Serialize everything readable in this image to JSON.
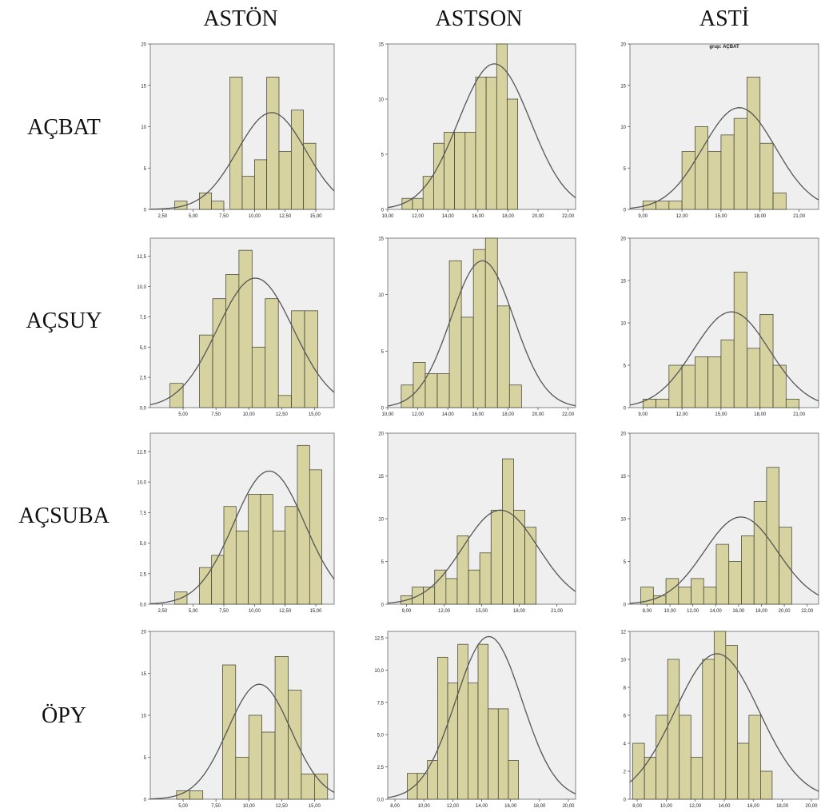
{
  "column_headers": [
    "ASTÖN",
    "ASTSON",
    "ASTİ"
  ],
  "row_headers": [
    "AÇBAT",
    "AÇSUY",
    "AÇSUBA",
    "ÖPY"
  ],
  "colors": {
    "bar_fill": "#d6d3a0",
    "bar_stroke": "#3a3a2a",
    "plot_bg": "#efefef",
    "curve": "#555555"
  },
  "chart_data": [
    {
      "type": "bar",
      "row": "AÇBAT",
      "column": "ASTÖN",
      "x": [
        4,
        6,
        7,
        8.5,
        9.5,
        10.5,
        11.5,
        12.5,
        13.5,
        14.5
      ],
      "values": [
        1,
        2,
        1,
        16,
        4,
        6,
        16,
        7,
        12,
        8
      ],
      "bin_width": 1,
      "xlim": [
        1.5,
        16.5
      ],
      "ylim": [
        0,
        20
      ],
      "xticks": [
        2.5,
        5,
        7.5,
        10,
        12.5,
        15
      ],
      "xtick_labels": [
        "2,50",
        "5,00",
        "7,50",
        "10,00",
        "12,50",
        "15,00"
      ],
      "yticks": [
        0,
        5,
        10,
        15,
        20
      ],
      "ytick_labels": [
        "0",
        "5",
        "10",
        "15",
        "20"
      ],
      "curve": {
        "mean": 11.4,
        "sd": 2.8,
        "peak": 11.7
      }
    },
    {
      "type": "bar",
      "row": "AÇBAT",
      "column": "ASTSON",
      "x": [
        11.3,
        12,
        12.7,
        13.4,
        14.1,
        14.8,
        15.5,
        16.2,
        16.9,
        17.6,
        18.3,
        19
      ],
      "values": [
        1,
        1,
        3,
        6,
        7,
        7,
        7,
        12,
        12,
        15,
        10,
        0
      ],
      "bin_width": 0.7,
      "xlim": [
        10,
        22.5
      ],
      "ylim": [
        0,
        15
      ],
      "xticks": [
        10,
        12,
        14,
        16,
        18,
        20,
        22
      ],
      "xtick_labels": [
        "10,00",
        "12,00",
        "14,00",
        "16,00",
        "18,00",
        "20,00",
        "22,00"
      ],
      "yticks": [
        0,
        5,
        10,
        15
      ],
      "ytick_labels": [
        "0",
        "5",
        "10",
        "15"
      ],
      "curve": {
        "mean": 17.1,
        "sd": 2.4,
        "peak": 13.2
      }
    },
    {
      "type": "bar",
      "row": "AÇBAT",
      "column": "ASTİ",
      "title": "grup: AÇBAT",
      "x": [
        9.5,
        10.5,
        11.5,
        12.5,
        13.5,
        14.5,
        15.5,
        16.5,
        17.5,
        18.5,
        19.5,
        20.5
      ],
      "values": [
        1,
        1,
        1,
        7,
        10,
        7,
        9,
        11,
        16,
        8,
        2,
        0
      ],
      "bin_width": 1,
      "xlim": [
        8,
        22.5
      ],
      "ylim": [
        0,
        20
      ],
      "xticks": [
        9,
        12,
        15,
        18,
        21
      ],
      "xtick_labels": [
        "9,00",
        "12,00",
        "15,00",
        "18,00",
        "21,00"
      ],
      "yticks": [
        0,
        5,
        10,
        15,
        20
      ],
      "ytick_labels": [
        "0",
        "5",
        "10",
        "15",
        "20"
      ],
      "curve": {
        "mean": 16.4,
        "sd": 2.8,
        "peak": 12.3
      }
    },
    {
      "type": "bar",
      "row": "AÇSUY",
      "column": "ASTÖN",
      "x": [
        4.5,
        6.75,
        7.75,
        8.75,
        9.75,
        10.75,
        11.75,
        12.75,
        13.75,
        14.75
      ],
      "values": [
        2,
        6,
        9,
        11,
        13,
        5,
        9,
        1,
        8,
        8
      ],
      "bin_width": 1,
      "xlim": [
        2.5,
        16.5
      ],
      "ylim": [
        0,
        14
      ],
      "xticks": [
        5,
        7.5,
        10,
        12.5,
        15
      ],
      "xtick_labels": [
        "5,00",
        "7,50",
        "10,00",
        "12,50",
        "15,00"
      ],
      "yticks": [
        0,
        2.5,
        5,
        7.5,
        10,
        12.5
      ],
      "ytick_labels": [
        "0,0",
        "2,5",
        "5,0",
        "7,5",
        "10,0",
        "12,5"
      ],
      "curve": {
        "mean": 10.5,
        "sd": 2.9,
        "peak": 10.7
      }
    },
    {
      "type": "bar",
      "row": "AÇSUY",
      "column": "ASTSON",
      "x": [
        11.3,
        12.1,
        12.9,
        13.7,
        14.5,
        15.3,
        16.1,
        16.9,
        17.7,
        18.5,
        19.3
      ],
      "values": [
        2,
        4,
        3,
        3,
        13,
        8,
        14,
        15,
        9,
        2,
        0
      ],
      "bin_width": 0.8,
      "xlim": [
        10,
        22.5
      ],
      "ylim": [
        0,
        15
      ],
      "xticks": [
        10,
        12,
        14,
        16,
        18,
        20,
        22
      ],
      "xtick_labels": [
        "10,00",
        "12,00",
        "14,00",
        "16,00",
        "18,00",
        "20,00",
        "22,00"
      ],
      "yticks": [
        0,
        5,
        10,
        15
      ],
      "ytick_labels": [
        "0",
        "5",
        "10",
        "15"
      ],
      "curve": {
        "mean": 16.3,
        "sd": 2.1,
        "peak": 13.0
      }
    },
    {
      "type": "bar",
      "row": "AÇSUY",
      "column": "ASTİ",
      "x": [
        9.5,
        10.5,
        11.5,
        12.5,
        13.5,
        14.5,
        15.5,
        16.5,
        17.5,
        18.5,
        19.5,
        20.5
      ],
      "values": [
        1,
        1,
        5,
        5,
        6,
        6,
        8,
        16,
        7,
        11,
        5,
        1
      ],
      "bin_width": 1,
      "xlim": [
        8,
        22.5
      ],
      "ylim": [
        0,
        20
      ],
      "xticks": [
        9,
        12,
        15,
        18,
        21
      ],
      "xtick_labels": [
        "9,00",
        "12,00",
        "15,00",
        "18,00",
        "21,00"
      ],
      "yticks": [
        0,
        5,
        10,
        15,
        20
      ],
      "ytick_labels": [
        "0",
        "5",
        "10",
        "15",
        "20"
      ],
      "curve": {
        "mean": 15.8,
        "sd": 2.9,
        "peak": 11.3
      }
    },
    {
      "type": "bar",
      "row": "AÇSUBA",
      "column": "ASTÖN",
      "x": [
        4,
        6,
        7,
        8,
        9,
        10,
        11,
        12,
        13,
        14,
        15
      ],
      "values": [
        1,
        3,
        4,
        8,
        6,
        9,
        9,
        6,
        8,
        13,
        11
      ],
      "bin_width": 1,
      "xlim": [
        1.5,
        16.5
      ],
      "ylim": [
        0,
        14
      ],
      "xticks": [
        2.5,
        5,
        7.5,
        10,
        12.5,
        15
      ],
      "xtick_labels": [
        "2,50",
        "5,00",
        "7,50",
        "10,00",
        "12,50",
        "15,00"
      ],
      "yticks": [
        0,
        2.5,
        5,
        7.5,
        10,
        12.5
      ],
      "ytick_labels": [
        "0,0",
        "2,5",
        "5,0",
        "7,5",
        "10,0",
        "12,5"
      ],
      "curve": {
        "mean": 11.2,
        "sd": 2.9,
        "peak": 10.9
      }
    },
    {
      "type": "bar",
      "row": "AÇSUBA",
      "column": "ASTSON",
      "x": [
        9,
        9.9,
        10.8,
        11.7,
        12.6,
        13.5,
        14.4,
        15.3,
        16.2,
        17.1,
        18,
        18.9,
        19.8
      ],
      "values": [
        1,
        2,
        2,
        4,
        3,
        8,
        4,
        6,
        11,
        17,
        11,
        9,
        0
      ],
      "bin_width": 0.9,
      "xlim": [
        7.5,
        22.5
      ],
      "ylim": [
        0,
        20
      ],
      "xticks": [
        9,
        12,
        15,
        18,
        21
      ],
      "xtick_labels": [
        "9,00",
        "12,00",
        "15,00",
        "18,00",
        "21,00"
      ],
      "yticks": [
        0,
        5,
        10,
        15,
        20
      ],
      "ytick_labels": [
        "0",
        "5",
        "10",
        "15",
        "20"
      ],
      "curve": {
        "mean": 16.5,
        "sd": 3.0,
        "peak": 11.0
      }
    },
    {
      "type": "bar",
      "row": "AÇSUBA",
      "column": "ASTİ",
      "x": [
        8,
        9.1,
        10.2,
        11.3,
        12.4,
        13.5,
        14.6,
        15.7,
        16.8,
        17.9,
        19,
        20.1
      ],
      "values": [
        2,
        1,
        3,
        2,
        3,
        2,
        7,
        5,
        8,
        12,
        16,
        9
      ],
      "bin_width": 1.1,
      "xlim": [
        6.5,
        23
      ],
      "ylim": [
        0,
        20
      ],
      "xticks": [
        8,
        10,
        12,
        14,
        16,
        18,
        20,
        22
      ],
      "xtick_labels": [
        "8,00",
        "10,00",
        "12,00",
        "14,00",
        "16,00",
        "18,00",
        "20,00",
        "22,00"
      ],
      "yticks": [
        0,
        5,
        10,
        15,
        20
      ],
      "ytick_labels": [
        "0",
        "5",
        "10",
        "15",
        "20"
      ],
      "curve": {
        "mean": 16.2,
        "sd": 3.2,
        "peak": 10.2
      }
    },
    {
      "type": "bar",
      "row": "ÖPY",
      "column": "ASTÖN",
      "x": [
        5,
        6,
        8.5,
        9.5,
        10.5,
        11.5,
        12.5,
        13.5,
        14.5,
        15.5
      ],
      "values": [
        1,
        1,
        16,
        5,
        10,
        8,
        17,
        13,
        3,
        3
      ],
      "bin_width": 1,
      "xlim": [
        2.5,
        16.5
      ],
      "ylim": [
        0,
        20
      ],
      "xticks": [
        5,
        7.5,
        10,
        12.5,
        15
      ],
      "xtick_labels": [
        "5,00",
        "7,50",
        "10,00",
        "12,50",
        "15,00"
      ],
      "yticks": [
        0,
        5,
        10,
        15,
        20
      ],
      "ytick_labels": [
        "0",
        "5",
        "10",
        "15",
        "20"
      ],
      "curve": {
        "mean": 10.8,
        "sd": 2.4,
        "peak": 13.7
      }
    },
    {
      "type": "bar",
      "row": "ÖPY",
      "column": "ASTSON",
      "x": [
        9.2,
        9.9,
        10.6,
        11.3,
        12,
        12.7,
        13.4,
        14.1,
        14.8,
        15.5,
        16.2,
        16.9
      ],
      "values": [
        2,
        2,
        3,
        11,
        9,
        12,
        9,
        12,
        7,
        7,
        3,
        0
      ],
      "bin_width": 0.7,
      "xlim": [
        7.5,
        20.5
      ],
      "ylim": [
        0,
        13
      ],
      "xticks": [
        8,
        10,
        12,
        14,
        16,
        18,
        20
      ],
      "xtick_labels": [
        "8,00",
        "10,00",
        "12,00",
        "14,00",
        "16,00",
        "18,00",
        "20,00"
      ],
      "yticks": [
        0,
        2.5,
        5,
        7.5,
        10,
        12.5
      ],
      "ytick_labels": [
        "0,0",
        "2,5",
        "5,0",
        "7,5",
        "10,0",
        "12,5"
      ],
      "curve": {
        "mean": 14.5,
        "sd": 2.3,
        "peak": 12.6
      }
    },
    {
      "type": "bar",
      "row": "ÖPY",
      "column": "ASTİ",
      "x": [
        8.1,
        8.9,
        9.7,
        10.5,
        11.3,
        12.1,
        12.9,
        13.7,
        14.5,
        15.3,
        16.1,
        16.9,
        17.7,
        18.5,
        19.3
      ],
      "values": [
        4,
        3,
        6,
        10,
        6,
        3,
        10,
        12,
        11,
        4,
        6,
        2,
        0,
        0,
        0
      ],
      "bin_width": 0.8,
      "xlim": [
        7.5,
        20.5
      ],
      "ylim": [
        0,
        12
      ],
      "xticks": [
        8,
        10,
        12,
        14,
        16,
        18,
        20
      ],
      "xtick_labels": [
        "8,00",
        "10,00",
        "12,00",
        "14,00",
        "16,00",
        "18,00",
        "20,00"
      ],
      "yticks": [
        0,
        2,
        4,
        6,
        8,
        10,
        12
      ],
      "ytick_labels": [
        "0",
        "2",
        "4",
        "6",
        "8",
        "10",
        "12"
      ],
      "curve": {
        "mean": 13.5,
        "sd": 2.9,
        "peak": 10.4
      }
    }
  ]
}
